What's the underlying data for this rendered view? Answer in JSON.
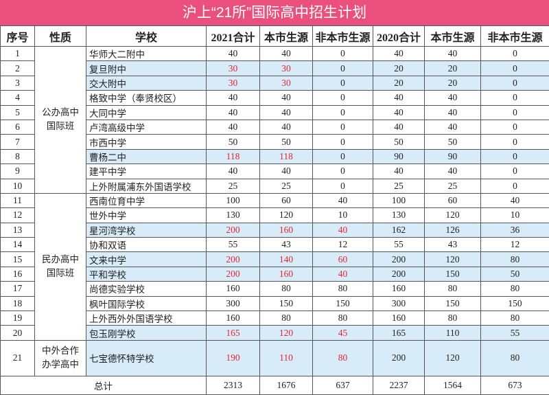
{
  "title": "沪上“21所”国际高中招生计划",
  "header": [
    "序号",
    "性质",
    "学校",
    "2021合计",
    "本市生源",
    "非本市生源",
    "2020合计",
    "本市生源",
    "非本市生源"
  ],
  "groups": [
    {
      "lines": [
        "公办高中",
        "国际班"
      ],
      "rows": 10
    },
    {
      "lines": [
        "民办高中",
        "国际班"
      ],
      "rows": 10
    },
    {
      "lines": [
        "中外合作",
        "办学高中"
      ],
      "rows": 1
    }
  ],
  "rows": [
    {
      "no": 1,
      "school": "华师大二附中",
      "values": [
        40,
        40,
        0,
        40,
        40,
        0
      ]
    },
    {
      "no": 2,
      "school": "复旦附中",
      "values": [
        30,
        30,
        0,
        20,
        20,
        0
      ],
      "highlight": true
    },
    {
      "no": 3,
      "school": "交大附中",
      "values": [
        30,
        30,
        0,
        20,
        20,
        0
      ],
      "highlight": true
    },
    {
      "no": 4,
      "school": "格致中学（奉贤校区）",
      "values": [
        40,
        40,
        0,
        40,
        40,
        0
      ]
    },
    {
      "no": 5,
      "school": "大同中学",
      "values": [
        40,
        40,
        0,
        40,
        40,
        0
      ]
    },
    {
      "no": 6,
      "school": "卢湾高级中学",
      "values": [
        40,
        40,
        0,
        40,
        40,
        0
      ]
    },
    {
      "no": 7,
      "school": "市西中学",
      "values": [
        50,
        50,
        0,
        50,
        50,
        0
      ]
    },
    {
      "no": 8,
      "school": "曹杨二中",
      "values": [
        118,
        118,
        0,
        90,
        90,
        0
      ],
      "highlight": true
    },
    {
      "no": 9,
      "school": "建平中学",
      "values": [
        40,
        40,
        0,
        40,
        40,
        0
      ]
    },
    {
      "no": 10,
      "school": "上外附属浦东外国语学校",
      "values": [
        25,
        25,
        0,
        25,
        25,
        0
      ]
    },
    {
      "no": 11,
      "school": "西南位育中学",
      "values": [
        100,
        60,
        40,
        100,
        60,
        40
      ]
    },
    {
      "no": 12,
      "school": "世外中学",
      "values": [
        130,
        120,
        10,
        130,
        120,
        10
      ]
    },
    {
      "no": 13,
      "school": "星河湾学校",
      "values": [
        200,
        160,
        40,
        162,
        126,
        36
      ],
      "highlight": true
    },
    {
      "no": 14,
      "school": "协和双语",
      "values": [
        55,
        43,
        12,
        55,
        43,
        12
      ]
    },
    {
      "no": 15,
      "school": "文来中学",
      "values": [
        200,
        140,
        60,
        200,
        120,
        80
      ],
      "highlight": true
    },
    {
      "no": 16,
      "school": "平和学校",
      "values": [
        200,
        160,
        40,
        200,
        150,
        50
      ],
      "highlight": true
    },
    {
      "no": 17,
      "school": "尚德实验学校",
      "values": [
        160,
        80,
        80,
        160,
        80,
        80
      ]
    },
    {
      "no": 18,
      "school": "枫叶国际学校",
      "values": [
        300,
        150,
        150,
        300,
        150,
        150
      ]
    },
    {
      "no": 19,
      "school": "上外西外外国语学校",
      "values": [
        160,
        80,
        80,
        160,
        80,
        80
      ]
    },
    {
      "no": 20,
      "school": "包玉刚学校",
      "values": [
        165,
        120,
        45,
        165,
        110,
        55
      ],
      "highlight": true
    },
    {
      "no": 21,
      "school": "七宝德怀特学校",
      "values": [
        190,
        110,
        80,
        200,
        120,
        80
      ],
      "highlight": true
    }
  ],
  "total": {
    "label": "总计",
    "values": [
      2313,
      1676,
      637,
      2237,
      1564,
      673
    ]
  }
}
